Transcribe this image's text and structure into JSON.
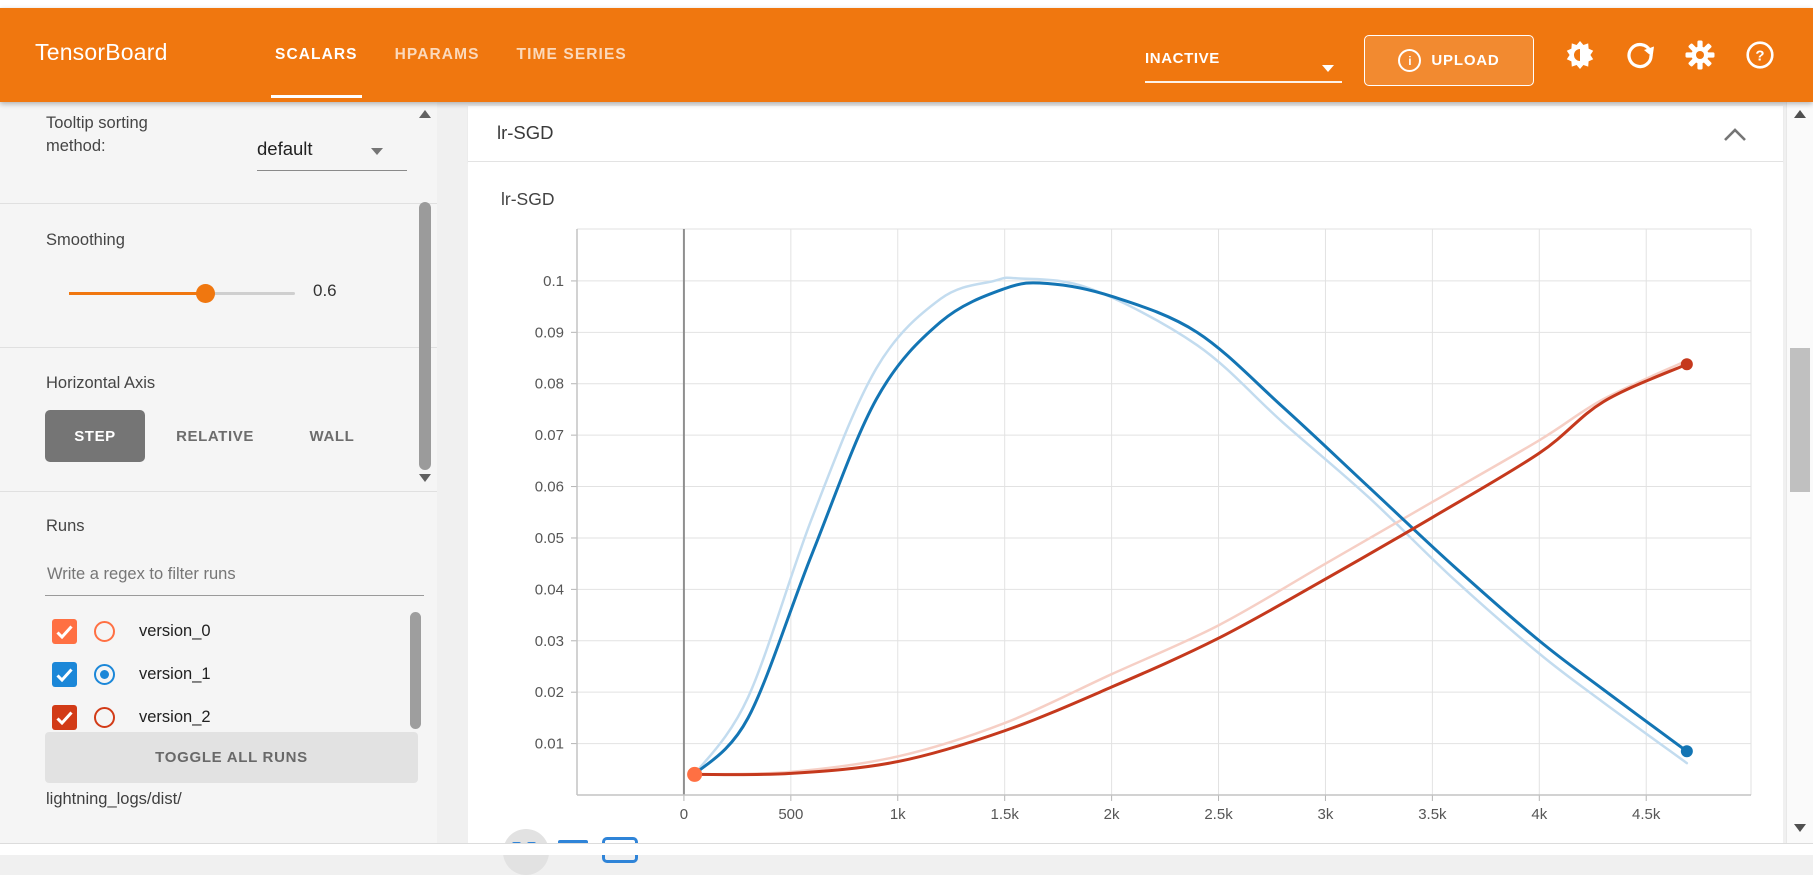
{
  "header": {
    "title": "TensorBoard",
    "tabs": [
      {
        "label": "SCALARS",
        "active": true
      },
      {
        "label": "HPARAMS",
        "active": false
      },
      {
        "label": "TIME SERIES",
        "active": false
      }
    ],
    "status_dropdown": {
      "value": "INACTIVE"
    },
    "upload_button": {
      "label": "UPLOAD",
      "info_glyph": "i"
    },
    "accent_color": "#f0770f"
  },
  "sidebar": {
    "tooltip_sorting": {
      "label": "Tooltip sorting\nmethod:",
      "value": "default"
    },
    "smoothing": {
      "label": "Smoothing",
      "value": "0.6",
      "fraction": 0.6
    },
    "horizontal_axis": {
      "label": "Horizontal Axis",
      "options": [
        {
          "label": "STEP",
          "active": true
        },
        {
          "label": "RELATIVE",
          "active": false
        },
        {
          "label": "WALL",
          "active": false
        }
      ]
    },
    "runs": {
      "label": "Runs",
      "filter_placeholder": "Write a regex to filter runs",
      "items": [
        {
          "label": "version_0",
          "color": "#ff7043",
          "checked": true,
          "radio_selected": false
        },
        {
          "label": "version_1",
          "color": "#1b87d8",
          "checked": true,
          "radio_selected": true
        },
        {
          "label": "version_2",
          "color": "#d23b17",
          "checked": true,
          "radio_selected": false
        }
      ],
      "toggle_all_label": "TOGGLE ALL RUNS",
      "log_dir": "lightning_logs/dist/"
    }
  },
  "main": {
    "card_title": "lr-SGD",
    "chart_title": "lr-SGD"
  },
  "chart_data": {
    "type": "line",
    "title": "lr-SGD",
    "xlabel": "",
    "ylabel": "",
    "grid": true,
    "legend": "none",
    "xlim": [
      -500,
      4990
    ],
    "ylim": [
      0,
      0.1101
    ],
    "x_ticks": [
      {
        "value": 0,
        "label": "0"
      },
      {
        "value": 500,
        "label": "500"
      },
      {
        "value": 1000,
        "label": "1k"
      },
      {
        "value": 1500,
        "label": "1.5k"
      },
      {
        "value": 2000,
        "label": "2k"
      },
      {
        "value": 2500,
        "label": "2.5k"
      },
      {
        "value": 3000,
        "label": "3k"
      },
      {
        "value": 3500,
        "label": "3.5k"
      },
      {
        "value": 4000,
        "label": "4k"
      },
      {
        "value": 4500,
        "label": "4.5k"
      }
    ],
    "y_ticks": [
      {
        "value": 0.01,
        "label": "0.01"
      },
      {
        "value": 0.02,
        "label": "0.02"
      },
      {
        "value": 0.03,
        "label": "0.03"
      },
      {
        "value": 0.04,
        "label": "0.04"
      },
      {
        "value": 0.05,
        "label": "0.05"
      },
      {
        "value": 0.06,
        "label": "0.06"
      },
      {
        "value": 0.07,
        "label": "0.07"
      },
      {
        "value": 0.08,
        "label": "0.08"
      },
      {
        "value": 0.09,
        "label": "0.09"
      },
      {
        "value": 0.1,
        "label": "0.1"
      }
    ],
    "series": [
      {
        "name": "version_1 (raw)",
        "color": "#c3dcef",
        "width": 2.5,
        "points": [
          [
            50,
            0.004
          ],
          [
            300,
            0.019
          ],
          [
            600,
            0.054
          ],
          [
            900,
            0.083
          ],
          [
            1200,
            0.0965
          ],
          [
            1450,
            0.1
          ],
          [
            1560,
            0.1005
          ],
          [
            1900,
            0.0985
          ],
          [
            2400,
            0.0875
          ],
          [
            2800,
            0.0725
          ],
          [
            3200,
            0.058
          ],
          [
            3600,
            0.042
          ],
          [
            4000,
            0.0275
          ],
          [
            4300,
            0.018
          ],
          [
            4690,
            0.0062
          ]
        ]
      },
      {
        "name": "version_2 (raw)",
        "color": "#f6cfc5",
        "width": 2.5,
        "points": [
          [
            50,
            0.004
          ],
          [
            500,
            0.0045
          ],
          [
            1000,
            0.0075
          ],
          [
            1500,
            0.014
          ],
          [
            2000,
            0.0235
          ],
          [
            2500,
            0.033
          ],
          [
            3000,
            0.045
          ],
          [
            3500,
            0.057
          ],
          [
            4000,
            0.069
          ],
          [
            4300,
            0.077
          ],
          [
            4690,
            0.0845
          ]
        ]
      },
      {
        "name": "version_1 (smoothed)",
        "color": "#1375b4",
        "width": 3,
        "points": [
          [
            50,
            0.004
          ],
          [
            300,
            0.015
          ],
          [
            600,
            0.047
          ],
          [
            900,
            0.077
          ],
          [
            1200,
            0.092
          ],
          [
            1500,
            0.0985
          ],
          [
            1700,
            0.0995
          ],
          [
            2000,
            0.097
          ],
          [
            2400,
            0.09
          ],
          [
            2800,
            0.0755
          ],
          [
            3200,
            0.06
          ],
          [
            3600,
            0.0445
          ],
          [
            4000,
            0.03
          ],
          [
            4300,
            0.0205
          ],
          [
            4690,
            0.0085
          ]
        ]
      },
      {
        "name": "version_2 (smoothed)",
        "color": "#c5391d",
        "width": 3,
        "points": [
          [
            50,
            0.004
          ],
          [
            500,
            0.0042
          ],
          [
            1000,
            0.0065
          ],
          [
            1500,
            0.0125
          ],
          [
            2000,
            0.021
          ],
          [
            2500,
            0.0305
          ],
          [
            3000,
            0.042
          ],
          [
            3500,
            0.054
          ],
          [
            4000,
            0.0665
          ],
          [
            4300,
            0.0765
          ],
          [
            4690,
            0.0838
          ]
        ]
      },
      {
        "name": "version_0",
        "color": "#ff7043",
        "width": 3,
        "points": [
          [
            50,
            0.004
          ]
        ]
      }
    ],
    "markers": [
      {
        "x": 50,
        "y": 0.004,
        "color": "#ff7043",
        "r": 7.5
      },
      {
        "x": 4690,
        "y": 0.0838,
        "color": "#c5391d",
        "r": 6
      },
      {
        "x": 4690,
        "y": 0.0085,
        "color": "#1375b4",
        "r": 6
      }
    ]
  }
}
